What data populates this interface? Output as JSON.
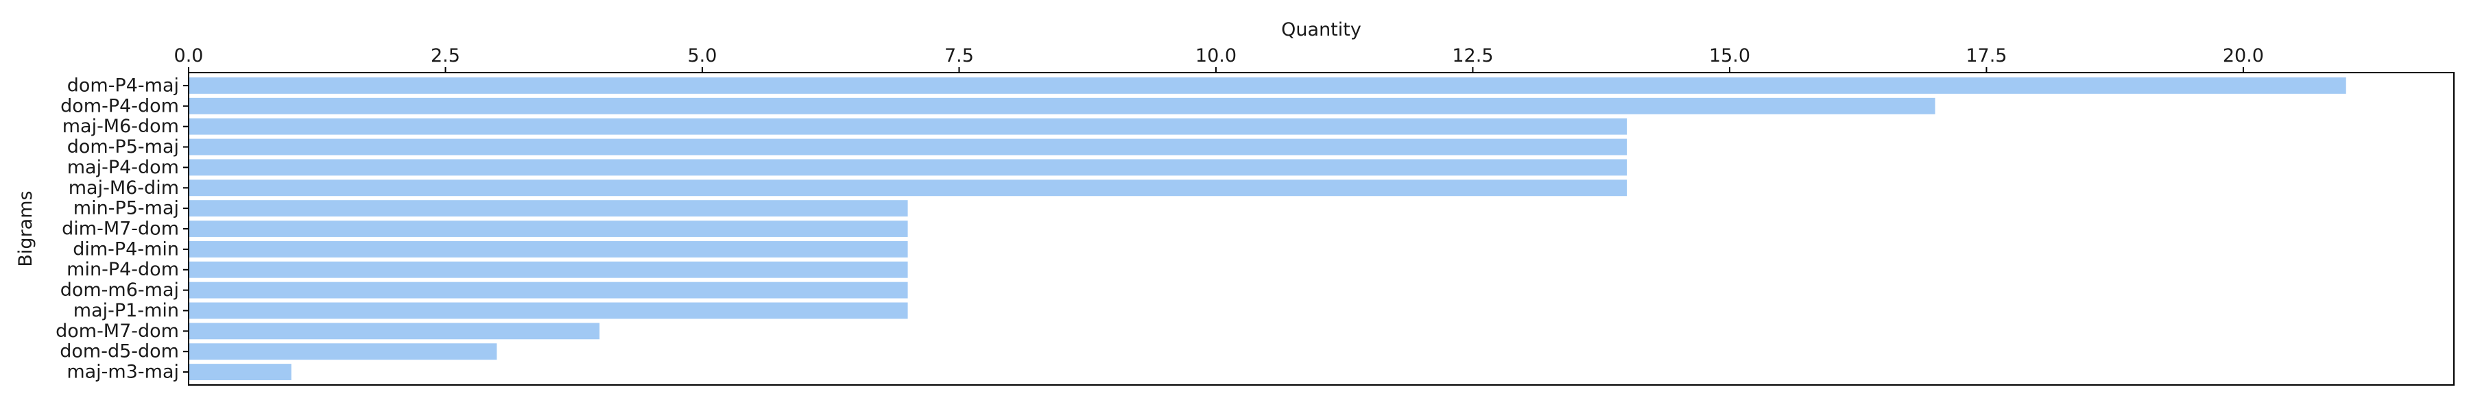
{
  "chart_data": {
    "type": "bar",
    "orientation": "horizontal",
    "title": "",
    "xlabel": "Quantity",
    "ylabel": "Bigrams",
    "xlim": [
      0,
      22.05
    ],
    "x_ticks": [
      0,
      2.5,
      5.0,
      7.5,
      10.0,
      12.5,
      15.0,
      17.5,
      20.0
    ],
    "x_tick_labels": [
      "0.0",
      "2.5",
      "5.0",
      "7.5",
      "10.0",
      "12.5",
      "15.0",
      "17.5",
      "20.0"
    ],
    "x_axis_position": "top",
    "grid": false,
    "legend": "none",
    "bar_color": "#a1c9f4",
    "categories": [
      "dom-P4-maj",
      "dom-P4-dom",
      "maj-M6-dom",
      "dom-P5-maj",
      "maj-P4-dom",
      "maj-M6-dim",
      "min-P5-maj",
      "dim-M7-dom",
      "dim-P4-min",
      "min-P4-dom",
      "dom-m6-maj",
      "maj-P1-min",
      "dom-M7-dom",
      "dom-d5-dom",
      "maj-m3-maj"
    ],
    "values": [
      21,
      17,
      14,
      14,
      14,
      14,
      7,
      7,
      7,
      7,
      7,
      7,
      4,
      3,
      1
    ]
  }
}
